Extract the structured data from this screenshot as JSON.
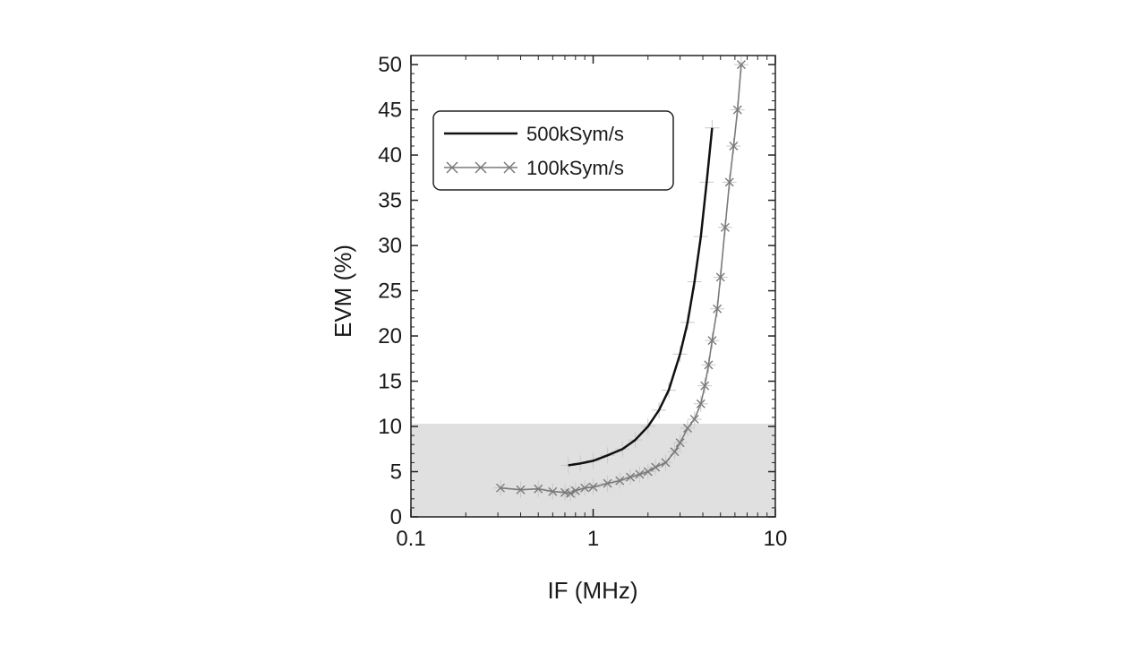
{
  "chart_data": {
    "type": "line",
    "xlabel": "IF (MHz)",
    "ylabel": "EVM (%)",
    "x_scale": "log",
    "xlim": [
      0.1,
      10
    ],
    "ylim": [
      0,
      51
    ],
    "x_ticks": [
      "0.1",
      "1",
      "10"
    ],
    "y_ticks": [
      "0",
      "5",
      "10",
      "15",
      "20",
      "25",
      "30",
      "35",
      "40",
      "45",
      "50"
    ],
    "shaded_band": {
      "y_from": 0,
      "y_to": 10.3,
      "color": "#e0e0e0"
    },
    "legend_position": "top-left",
    "series": [
      {
        "name": "500kSym/s",
        "color": "#111111",
        "marker": "none",
        "x": [
          0.73,
          0.85,
          1.0,
          1.2,
          1.45,
          1.7,
          2.0,
          2.3,
          2.6,
          3.0,
          3.3,
          3.6,
          3.9,
          4.2,
          4.5
        ],
        "y": [
          5.7,
          5.9,
          6.2,
          6.8,
          7.5,
          8.5,
          10.0,
          11.8,
          14.0,
          18.0,
          21.5,
          26.0,
          31.0,
          37.0,
          43.0
        ]
      },
      {
        "name": "100kSym/s",
        "color": "#7a7a7a",
        "marker": "x",
        "x": [
          0.31,
          0.4,
          0.5,
          0.6,
          0.7,
          0.75,
          0.8,
          0.9,
          1.0,
          1.2,
          1.4,
          1.6,
          1.8,
          2.0,
          2.2,
          2.5,
          2.8,
          3.0,
          3.3,
          3.6,
          3.9,
          4.1,
          4.3,
          4.5,
          4.8,
          5.0,
          5.3,
          5.6,
          5.9,
          6.2,
          6.5
        ],
        "y": [
          3.2,
          3.0,
          3.1,
          2.8,
          2.7,
          2.6,
          2.9,
          3.2,
          3.3,
          3.7,
          4.0,
          4.4,
          4.7,
          5.0,
          5.5,
          6.0,
          7.2,
          8.2,
          9.8,
          10.8,
          12.5,
          14.5,
          16.8,
          19.5,
          23.0,
          26.5,
          32.0,
          37.0,
          41.0,
          45.0,
          50.0
        ]
      }
    ]
  }
}
